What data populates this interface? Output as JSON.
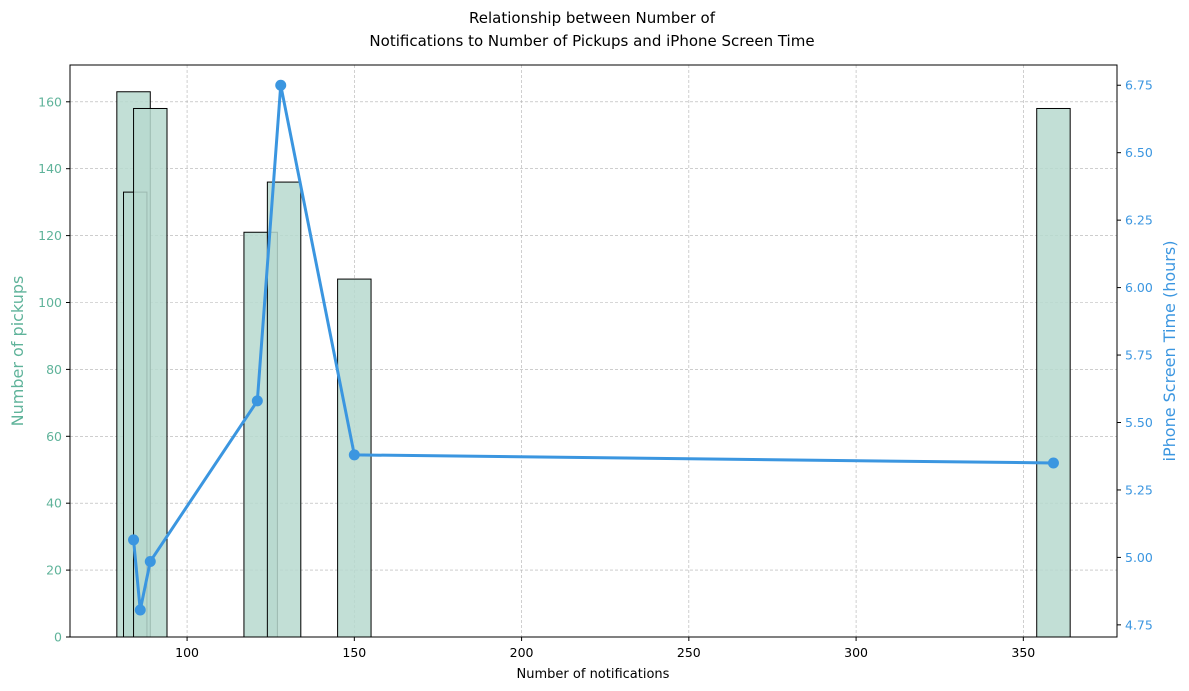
{
  "chart_data": {
    "type": "bar",
    "title": [
      "Relationship between Number of",
      "Notifications to Number of Pickups and iPhone Screen Time"
    ],
    "xlabel": "Number of notifications",
    "ylabel_left": "Number of pickups",
    "ylabel_right": "iPhone Screen Time (hours)",
    "xlim": [
      65,
      378
    ],
    "ylim_left": [
      0,
      171
    ],
    "ylim_right": [
      4.705,
      6.825
    ],
    "x_ticks": [
      100,
      150,
      200,
      250,
      300,
      350
    ],
    "y_left_ticks": [
      0,
      20,
      40,
      60,
      80,
      100,
      120,
      140,
      160
    ],
    "y_right_ticks": [
      "4.75",
      "5.00",
      "5.25",
      "5.50",
      "5.75",
      "6.00",
      "6.25",
      "6.50",
      "6.75"
    ],
    "grid": true,
    "bars": [
      {
        "x0": 79,
        "x1": 89,
        "value": 163
      },
      {
        "x0": 81,
        "x1": 88,
        "value": 133
      },
      {
        "x0": 84,
        "x1": 94,
        "value": 158
      },
      {
        "x0": 117,
        "x1": 127,
        "value": 121
      },
      {
        "x0": 124,
        "x1": 134,
        "value": 136
      },
      {
        "x0": 145,
        "x1": 155,
        "value": 107
      },
      {
        "x0": 354,
        "x1": 364,
        "value": 158
      }
    ],
    "series": [
      {
        "name": "iPhone Screen Time",
        "type": "line",
        "axis": "right",
        "x": [
          84,
          86,
          89,
          121,
          128,
          150,
          359
        ],
        "y": [
          5.065,
          4.805,
          4.985,
          5.58,
          6.75,
          5.38,
          5.35
        ]
      }
    ],
    "colors": {
      "bar_fill": "#b7d9cf",
      "bar_overlap": "#8cc2b0",
      "bar_edge": "#000000",
      "left_axis": "#5fb39a",
      "line": "#3b96e0",
      "grid": "#b0b0b0"
    }
  }
}
